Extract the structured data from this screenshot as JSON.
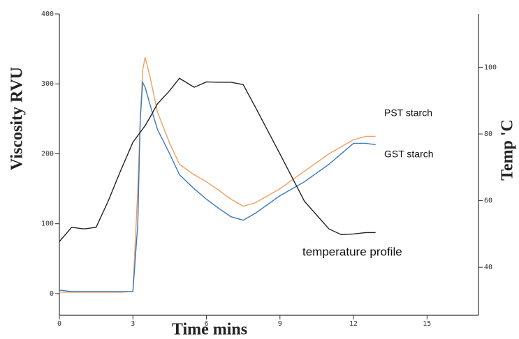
{
  "chart_data": {
    "type": "line",
    "xlabel": "Time mins",
    "ylabel": "Viscosity RVU",
    "y2label": "Temp 'C",
    "x": [
      0,
      0.5,
      1,
      1.5,
      2,
      2.5,
      3,
      3.2,
      3.3,
      3.4,
      3.5,
      3.7,
      4,
      4.5,
      4.9,
      5.5,
      6,
      6.5,
      7,
      7.5,
      8,
      9,
      10,
      11,
      11.5,
      12,
      12.5,
      12.9
    ],
    "series": [
      {
        "name": "PST starch",
        "color": "#f0a060",
        "values": [
          2,
          2,
          2,
          2,
          2,
          2,
          3,
          150,
          250,
          320,
          338,
          310,
          260,
          215,
          185,
          170,
          160,
          148,
          135,
          125,
          130,
          150,
          175,
          200,
          210,
          220,
          225,
          225
        ]
      },
      {
        "name": "GST starch",
        "color": "#3a78c0",
        "values": [
          5,
          3,
          3,
          3,
          3,
          3,
          3,
          100,
          250,
          302,
          295,
          270,
          235,
          200,
          170,
          150,
          135,
          122,
          110,
          105,
          115,
          140,
          160,
          185,
          200,
          215,
          215,
          213
        ]
      },
      {
        "name": "temperature profile",
        "color": "#222222",
        "axis": "y2",
        "values": [
          47.7,
          52,
          51.5,
          52,
          60,
          69,
          77.5,
          79.5,
          80.5,
          81.5,
          82.5,
          85,
          89,
          93,
          96.7,
          94,
          95.6,
          95.5,
          95.5,
          94.8,
          88,
          74,
          59.8,
          51.5,
          49.8,
          50,
          50.4,
          50.4
        ]
      }
    ],
    "xlim": [
      0,
      17.1
    ],
    "xticks": [
      0,
      3,
      6,
      9,
      12,
      15
    ],
    "ylim": [
      -31,
      400
    ],
    "yticks": [
      0,
      100,
      200,
      300,
      400
    ],
    "y2lim": [
      25.6,
      116
    ],
    "y2ticks": [
      40,
      60,
      80,
      100
    ]
  }
}
